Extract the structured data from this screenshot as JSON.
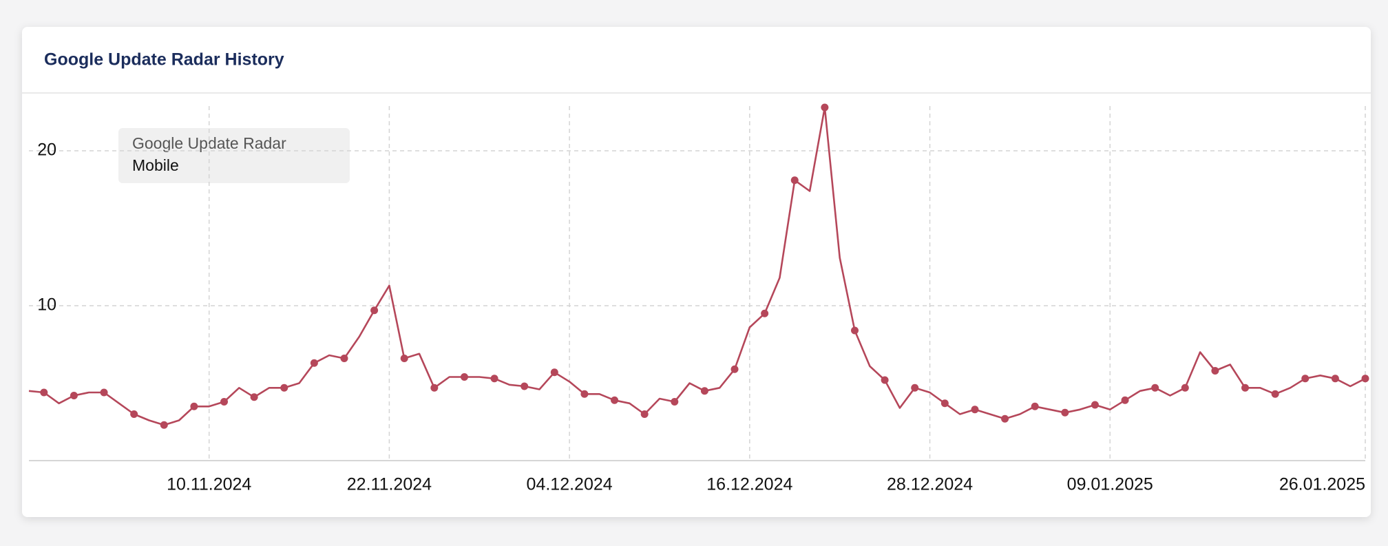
{
  "chart_data": {
    "type": "line",
    "title": "Google Update Radar History",
    "legend_subtitle": "Mobile",
    "x": [
      "29.10.2024",
      "30.10.2024",
      "31.10.2024",
      "01.11.2024",
      "02.11.2024",
      "03.11.2024",
      "04.11.2024",
      "05.11.2024",
      "06.11.2024",
      "07.11.2024",
      "08.11.2024",
      "09.11.2024",
      "10.11.2024",
      "11.11.2024",
      "12.11.2024",
      "13.11.2024",
      "14.11.2024",
      "15.11.2024",
      "16.11.2024",
      "17.11.2024",
      "18.11.2024",
      "19.11.2024",
      "20.11.2024",
      "21.11.2024",
      "22.11.2024",
      "23.11.2024",
      "24.11.2024",
      "25.11.2024",
      "26.11.2024",
      "27.11.2024",
      "28.11.2024",
      "29.11.2024",
      "30.11.2024",
      "01.12.2024",
      "02.12.2024",
      "03.12.2024",
      "04.12.2024",
      "05.12.2024",
      "06.12.2024",
      "07.12.2024",
      "08.12.2024",
      "09.12.2024",
      "10.12.2024",
      "11.12.2024",
      "12.12.2024",
      "13.12.2024",
      "14.12.2024",
      "15.12.2024",
      "16.12.2024",
      "17.12.2024",
      "18.12.2024",
      "19.12.2024",
      "20.12.2024",
      "21.12.2024",
      "22.12.2024",
      "23.12.2024",
      "24.12.2024",
      "25.12.2024",
      "26.12.2024",
      "27.12.2024",
      "28.12.2024",
      "29.12.2024",
      "30.12.2024",
      "31.12.2024",
      "01.01.2025",
      "02.01.2025",
      "03.01.2025",
      "04.01.2025",
      "05.01.2025",
      "06.01.2025",
      "07.01.2025",
      "08.01.2025",
      "09.01.2025",
      "10.01.2025",
      "11.01.2025",
      "12.01.2025",
      "13.01.2025",
      "14.01.2025",
      "15.01.2025",
      "16.01.2025",
      "17.01.2025",
      "18.01.2025",
      "19.01.2025",
      "20.01.2025",
      "21.01.2025",
      "22.01.2025",
      "23.01.2025",
      "24.01.2025",
      "25.01.2025",
      "26.01.2025"
    ],
    "series": [
      {
        "name": "Google Update Radar",
        "color": "#b5475a",
        "values": [
          4.5,
          4.4,
          3.7,
          4.2,
          4.4,
          4.4,
          3.7,
          3.0,
          2.6,
          2.3,
          2.6,
          3.5,
          3.5,
          3.8,
          4.7,
          4.1,
          4.7,
          4.7,
          5.0,
          6.3,
          6.8,
          6.6,
          8.0,
          9.7,
          11.3,
          6.6,
          6.9,
          4.7,
          5.4,
          5.4,
          5.4,
          5.3,
          4.9,
          4.8,
          4.6,
          5.7,
          5.1,
          4.3,
          4.3,
          3.9,
          3.7,
          3.0,
          4.0,
          3.8,
          5.0,
          4.5,
          4.7,
          5.9,
          8.6,
          9.5,
          11.8,
          18.1,
          17.4,
          22.8,
          13.1,
          8.4,
          6.1,
          5.2,
          3.4,
          4.7,
          4.4,
          3.7,
          3.0,
          3.3,
          3.0,
          2.7,
          3.0,
          3.5,
          3.3,
          3.1,
          3.3,
          3.6,
          3.3,
          3.9,
          4.5,
          4.7,
          4.2,
          4.7,
          7.0,
          5.8,
          6.2,
          4.7,
          4.7,
          4.3,
          4.7,
          5.3,
          5.5,
          5.3,
          4.8,
          5.3
        ]
      }
    ],
    "xlim": [
      "29.10.2024",
      "26.01.2025"
    ],
    "xticks": [
      "10.11.2024",
      "22.11.2024",
      "04.12.2024",
      "16.12.2024",
      "28.12.2024",
      "09.01.2025",
      "26.01.2025"
    ],
    "ylim": [
      0,
      23
    ],
    "yticks": [
      10,
      20
    ],
    "grid": true
  }
}
